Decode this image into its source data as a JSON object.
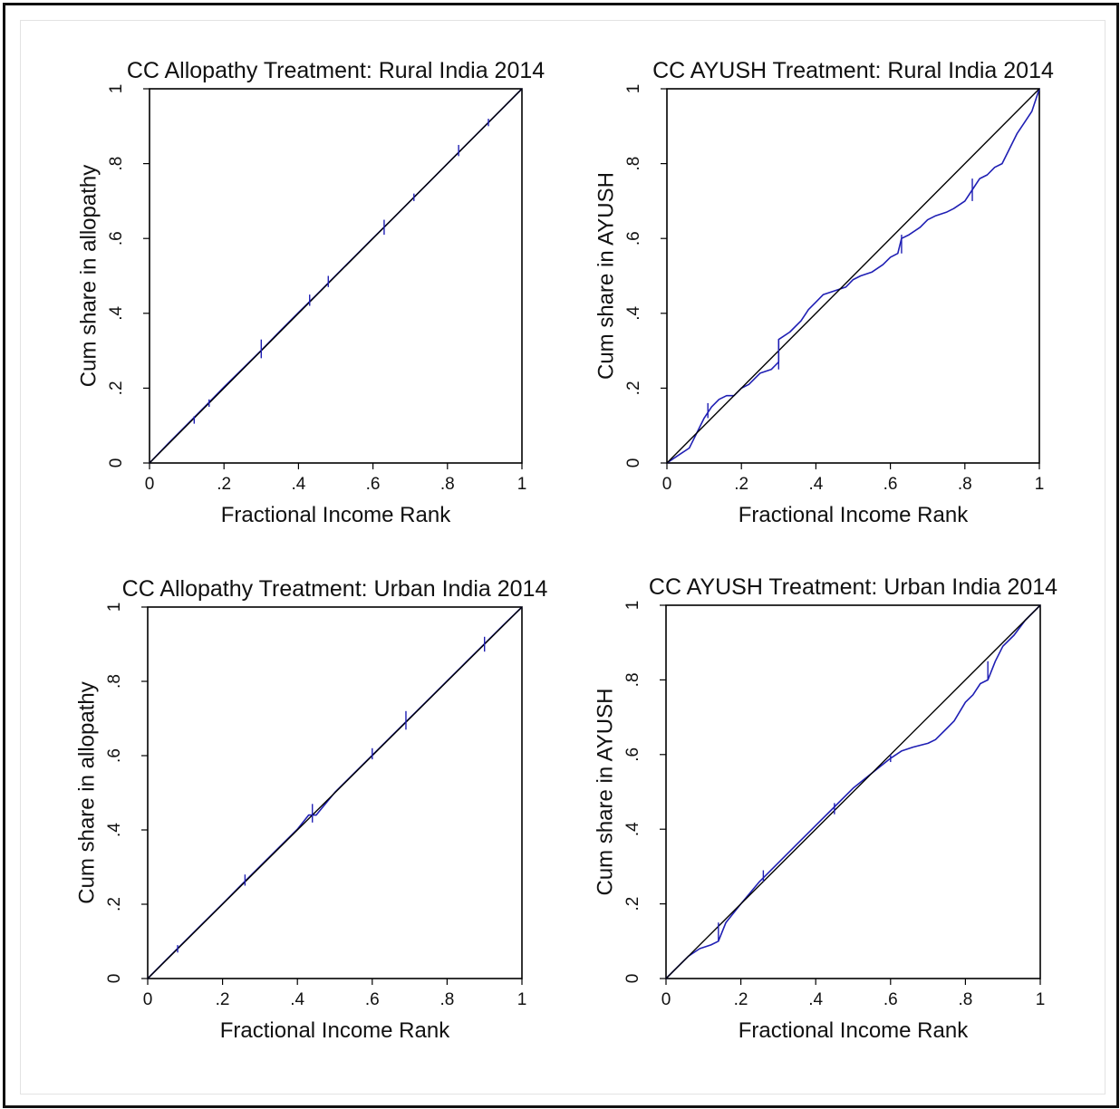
{
  "chart_data": [
    {
      "type": "line",
      "title": "CC Allopathy Treatment: Rural India 2014",
      "xlabel": "Fractional Income Rank",
      "ylabel": "Cum share in allopathy",
      "xlim": [
        0,
        1
      ],
      "ylim": [
        0,
        1
      ],
      "xticks": [
        "0",
        ".2",
        ".4",
        ".6",
        ".8",
        "1"
      ],
      "yticks": [
        "0",
        ".2",
        ".4",
        ".6",
        ".8",
        "1"
      ],
      "grid": false,
      "series": [
        {
          "role": "concentration-curve",
          "x": [
            0,
            0.05,
            0.1,
            0.15,
            0.2,
            0.25,
            0.3,
            0.35,
            0.4,
            0.45,
            0.5,
            0.55,
            0.6,
            0.65,
            0.7,
            0.75,
            0.8,
            0.85,
            0.9,
            0.95,
            1
          ],
          "y": [
            0,
            0.052,
            0.102,
            0.152,
            0.203,
            0.252,
            0.301,
            0.352,
            0.402,
            0.451,
            0.501,
            0.551,
            0.601,
            0.65,
            0.7,
            0.75,
            0.8,
            0.85,
            0.9,
            0.95,
            1
          ]
        },
        {
          "role": "line-of-equality",
          "x": [
            0,
            1
          ],
          "y": [
            0,
            1
          ]
        }
      ],
      "spikes": [
        {
          "x": 0.12,
          "y1": 0.105,
          "y2": 0.125
        },
        {
          "x": 0.16,
          "y1": 0.15,
          "y2": 0.17
        },
        {
          "x": 0.3,
          "y1": 0.28,
          "y2": 0.33
        },
        {
          "x": 0.43,
          "y1": 0.42,
          "y2": 0.45
        },
        {
          "x": 0.48,
          "y1": 0.47,
          "y2": 0.5
        },
        {
          "x": 0.63,
          "y1": 0.61,
          "y2": 0.65
        },
        {
          "x": 0.71,
          "y1": 0.7,
          "y2": 0.72
        },
        {
          "x": 0.83,
          "y1": 0.82,
          "y2": 0.85
        },
        {
          "x": 0.91,
          "y1": 0.9,
          "y2": 0.92
        }
      ]
    },
    {
      "type": "line",
      "title": "CC AYUSH Treatment: Rural India 2014",
      "xlabel": "Fractional Income Rank",
      "ylabel": "Cum share in AYUSH",
      "xlim": [
        0,
        1
      ],
      "ylim": [
        0,
        1
      ],
      "xticks": [
        "0",
        ".2",
        ".4",
        ".6",
        ".8",
        "1"
      ],
      "yticks": [
        "0",
        ".2",
        ".4",
        ".6",
        ".8",
        "1"
      ],
      "grid": false,
      "series": [
        {
          "role": "concentration-curve",
          "x": [
            0,
            0.03,
            0.06,
            0.08,
            0.1,
            0.12,
            0.14,
            0.16,
            0.18,
            0.2,
            0.22,
            0.25,
            0.28,
            0.3,
            0.3,
            0.33,
            0.36,
            0.38,
            0.4,
            0.42,
            0.45,
            0.48,
            0.5,
            0.52,
            0.55,
            0.58,
            0.6,
            0.62,
            0.63,
            0.65,
            0.68,
            0.7,
            0.72,
            0.75,
            0.77,
            0.8,
            0.82,
            0.84,
            0.86,
            0.88,
            0.9,
            0.92,
            0.94,
            0.96,
            0.98,
            1
          ],
          "y": [
            0,
            0.02,
            0.04,
            0.08,
            0.12,
            0.15,
            0.17,
            0.18,
            0.18,
            0.2,
            0.21,
            0.24,
            0.25,
            0.27,
            0.33,
            0.35,
            0.38,
            0.41,
            0.43,
            0.45,
            0.46,
            0.47,
            0.49,
            0.5,
            0.51,
            0.53,
            0.55,
            0.56,
            0.6,
            0.61,
            0.63,
            0.65,
            0.66,
            0.67,
            0.68,
            0.7,
            0.73,
            0.76,
            0.77,
            0.79,
            0.8,
            0.84,
            0.88,
            0.91,
            0.94,
            1
          ]
        },
        {
          "role": "line-of-equality",
          "x": [
            0,
            1
          ],
          "y": [
            0,
            1
          ]
        }
      ],
      "spikes": [
        {
          "x": 0.11,
          "y1": 0.12,
          "y2": 0.16
        },
        {
          "x": 0.3,
          "y1": 0.25,
          "y2": 0.33
        },
        {
          "x": 0.63,
          "y1": 0.56,
          "y2": 0.61
        },
        {
          "x": 0.82,
          "y1": 0.7,
          "y2": 0.76
        }
      ]
    },
    {
      "type": "line",
      "title": "CC Allopathy Treatment: Urban India 2014",
      "xlabel": "Fractional Income Rank",
      "ylabel": "Cum share in allopathy",
      "xlim": [
        0,
        1
      ],
      "ylim": [
        0,
        1
      ],
      "xticks": [
        "0",
        ".2",
        ".4",
        ".6",
        ".8",
        "1"
      ],
      "yticks": [
        "0",
        ".2",
        ".4",
        ".6",
        ".8",
        "1"
      ],
      "grid": false,
      "series": [
        {
          "role": "concentration-curve",
          "x": [
            0,
            0.05,
            0.1,
            0.15,
            0.2,
            0.25,
            0.3,
            0.35,
            0.4,
            0.43,
            0.45,
            0.5,
            0.55,
            0.6,
            0.65,
            0.7,
            0.75,
            0.8,
            0.85,
            0.9,
            0.95,
            1
          ],
          "y": [
            0,
            0.051,
            0.101,
            0.151,
            0.201,
            0.252,
            0.302,
            0.352,
            0.402,
            0.44,
            0.44,
            0.501,
            0.551,
            0.601,
            0.651,
            0.701,
            0.751,
            0.801,
            0.851,
            0.901,
            0.951,
            1
          ]
        },
        {
          "role": "line-of-equality",
          "x": [
            0,
            1
          ],
          "y": [
            0,
            1
          ]
        }
      ],
      "spikes": [
        {
          "x": 0.08,
          "y1": 0.07,
          "y2": 0.09
        },
        {
          "x": 0.26,
          "y1": 0.25,
          "y2": 0.28
        },
        {
          "x": 0.44,
          "y1": 0.42,
          "y2": 0.47
        },
        {
          "x": 0.6,
          "y1": 0.59,
          "y2": 0.62
        },
        {
          "x": 0.69,
          "y1": 0.67,
          "y2": 0.72
        },
        {
          "x": 0.9,
          "y1": 0.88,
          "y2": 0.92
        }
      ]
    },
    {
      "type": "line",
      "title": "CC AYUSH Treatment: Urban India 2014",
      "xlabel": "Fractional Income Rank",
      "ylabel": "Cum share in AYUSH",
      "xlim": [
        0,
        1
      ],
      "ylim": [
        0,
        1
      ],
      "xticks": [
        "0",
        ".2",
        ".4",
        ".6",
        ".8",
        "1"
      ],
      "yticks": [
        "0",
        ".2",
        ".4",
        ".6",
        ".8",
        "1"
      ],
      "grid": false,
      "series": [
        {
          "role": "concentration-curve",
          "x": [
            0,
            0.03,
            0.06,
            0.09,
            0.12,
            0.14,
            0.16,
            0.2,
            0.25,
            0.3,
            0.35,
            0.4,
            0.45,
            0.5,
            0.55,
            0.6,
            0.63,
            0.66,
            0.7,
            0.72,
            0.75,
            0.77,
            0.8,
            0.82,
            0.84,
            0.86,
            0.88,
            0.9,
            0.93,
            0.96,
            1
          ],
          "y": [
            0,
            0.03,
            0.06,
            0.08,
            0.09,
            0.1,
            0.15,
            0.2,
            0.26,
            0.31,
            0.36,
            0.41,
            0.46,
            0.51,
            0.55,
            0.59,
            0.61,
            0.62,
            0.63,
            0.64,
            0.67,
            0.69,
            0.74,
            0.76,
            0.79,
            0.8,
            0.85,
            0.89,
            0.92,
            0.96,
            1
          ]
        },
        {
          "role": "line-of-equality",
          "x": [
            0,
            1
          ],
          "y": [
            0,
            1
          ]
        }
      ],
      "spikes": [
        {
          "x": 0.14,
          "y1": 0.1,
          "y2": 0.15
        },
        {
          "x": 0.26,
          "y1": 0.26,
          "y2": 0.29
        },
        {
          "x": 0.45,
          "y1": 0.44,
          "y2": 0.47
        },
        {
          "x": 0.6,
          "y1": 0.58,
          "y2": 0.6
        },
        {
          "x": 0.86,
          "y1": 0.8,
          "y2": 0.85
        }
      ]
    }
  ],
  "colors": {
    "curve": "#1f1fb4",
    "equality_line": "#000000",
    "frame": "#111111"
  }
}
